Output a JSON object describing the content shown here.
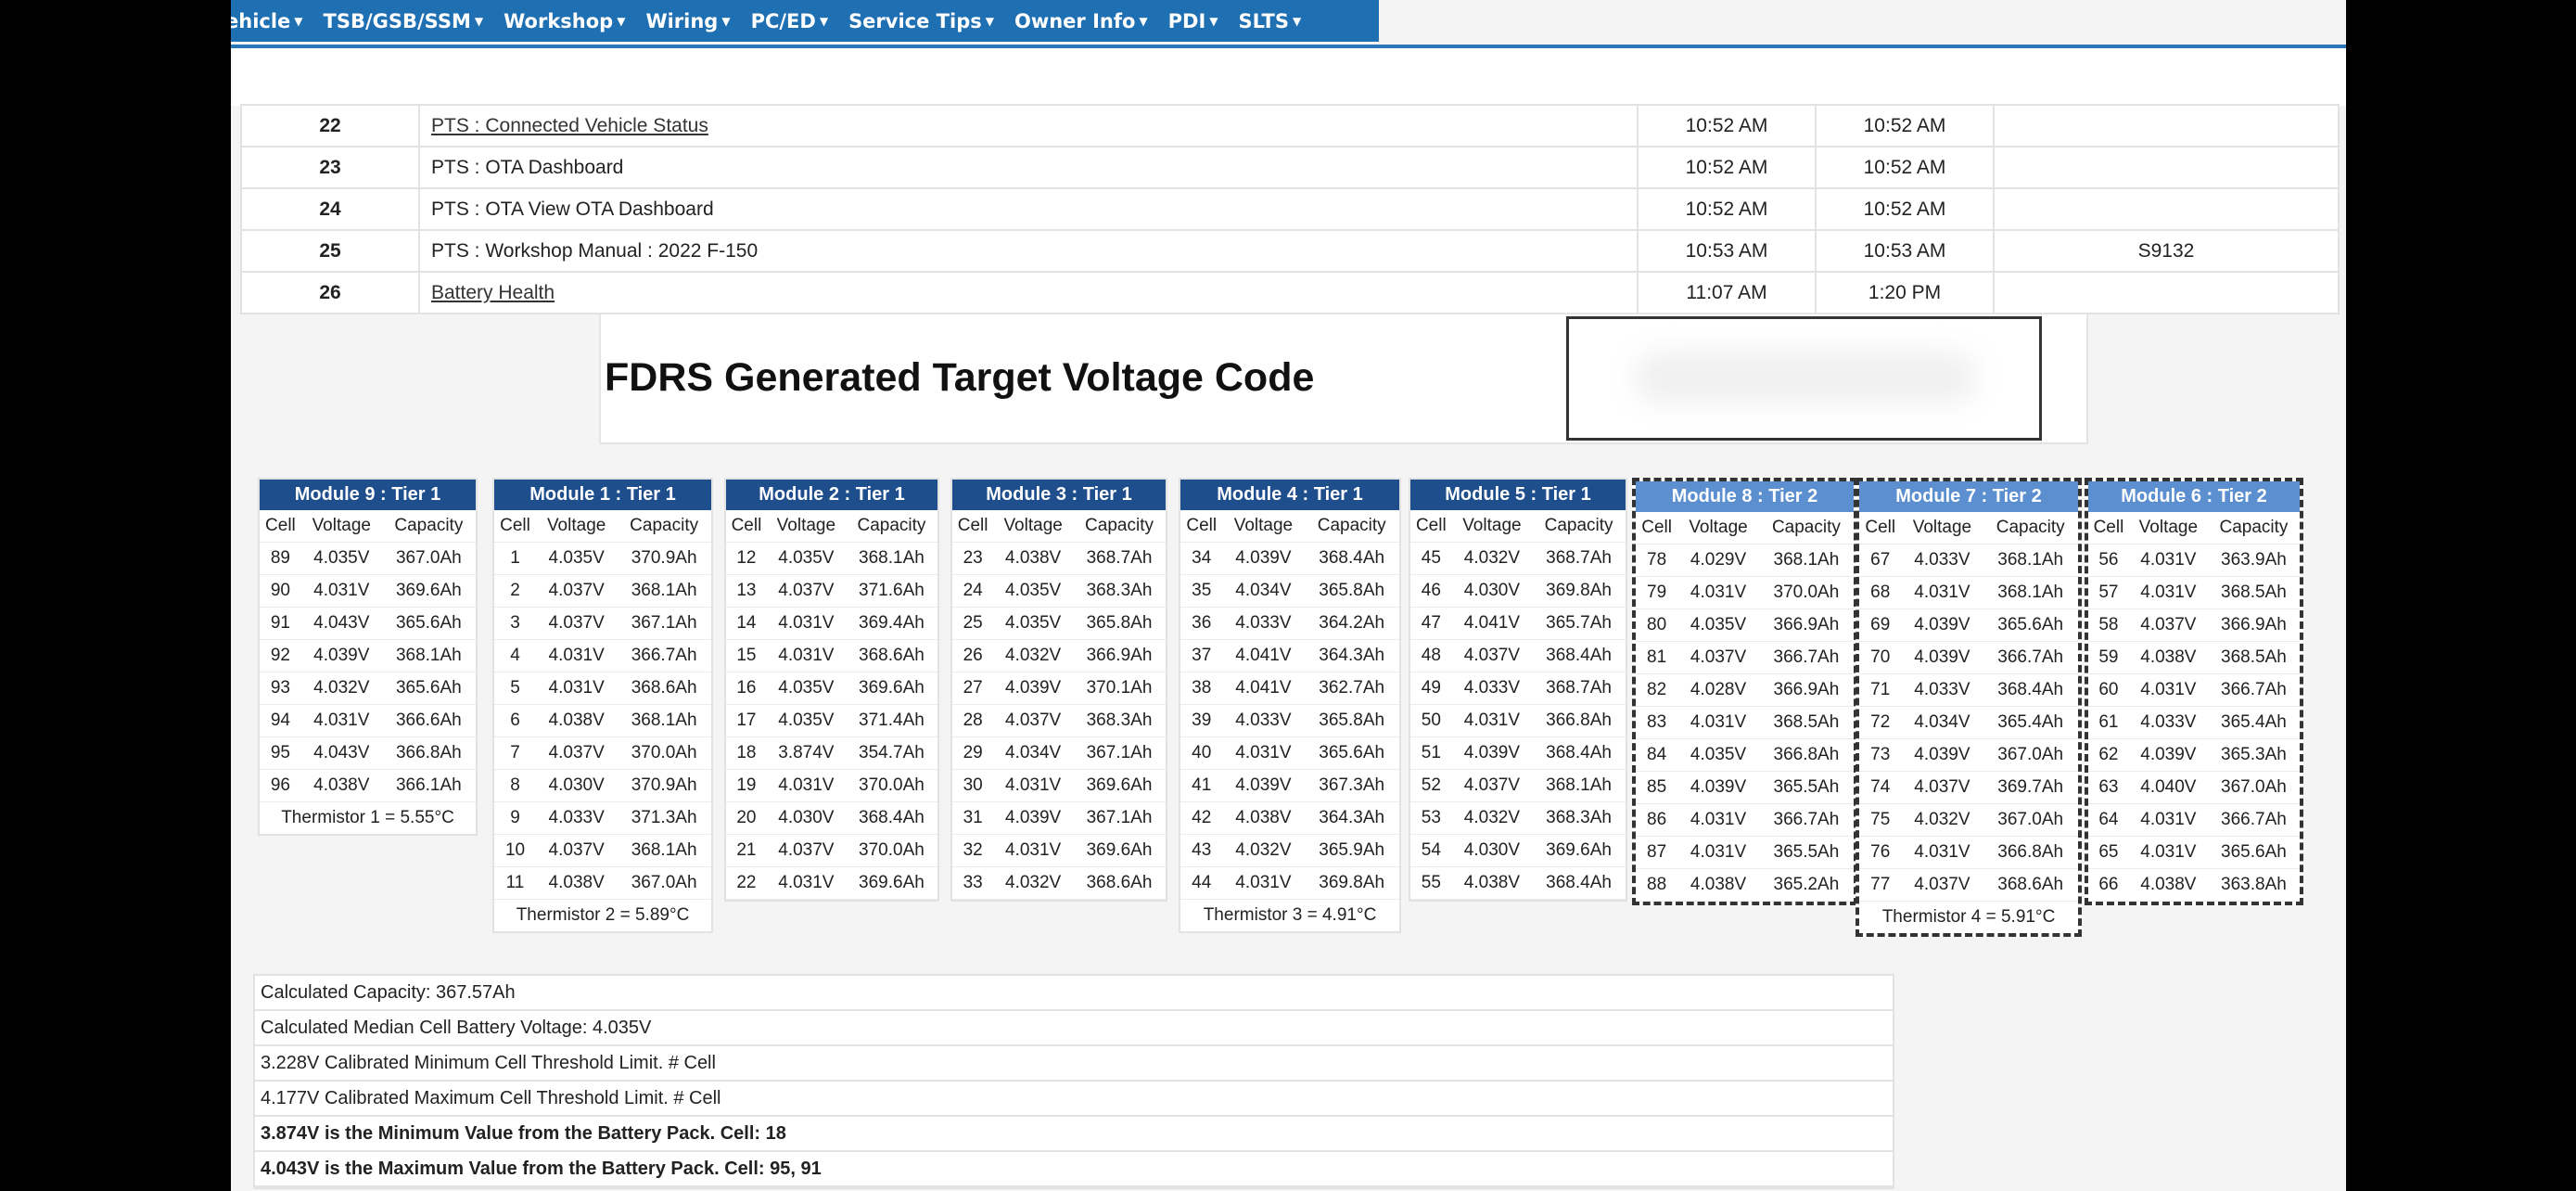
{
  "nav": [
    "ehicle",
    "TSB/GSB/SSM",
    "Workshop",
    "Wiring",
    "PC/ED",
    "Service Tips",
    "Owner Info",
    "PDI",
    "SLTS"
  ],
  "history": [
    {
      "num": "22",
      "desc": "PTS : Connected Vehicle Status",
      "t1": "10:52 AM",
      "t2": "10:52 AM",
      "code": "",
      "link": true
    },
    {
      "num": "23",
      "desc": "PTS : OTA Dashboard",
      "t1": "10:52 AM",
      "t2": "10:52 AM",
      "code": "",
      "link": false
    },
    {
      "num": "24",
      "desc": "PTS : OTA View OTA Dashboard",
      "t1": "10:52 AM",
      "t2": "10:52 AM",
      "code": "",
      "link": false
    },
    {
      "num": "25",
      "desc": "PTS : Workshop Manual : 2022 F-150",
      "t1": "10:53 AM",
      "t2": "10:53 AM",
      "code": "S9132",
      "link": false
    },
    {
      "num": "26",
      "desc": "Battery Health",
      "t1": "11:07 AM",
      "t2": "1:20 PM",
      "code": "",
      "link": true
    }
  ],
  "fdrs": {
    "title": "FDRS Generated Target Voltage Code"
  },
  "cell_headers": [
    "Cell",
    "Voltage",
    "Capacity"
  ],
  "modules": [
    {
      "title": "Module 9 : Tier 1",
      "dashed": false,
      "thermistor": "Thermistor 1 = 5.55°C",
      "cells": [
        [
          "89",
          "4.035V",
          "367.0Ah"
        ],
        [
          "90",
          "4.031V",
          "369.6Ah"
        ],
        [
          "91",
          "4.043V",
          "365.6Ah"
        ],
        [
          "92",
          "4.039V",
          "368.1Ah"
        ],
        [
          "93",
          "4.032V",
          "365.6Ah"
        ],
        [
          "94",
          "4.031V",
          "366.6Ah"
        ],
        [
          "95",
          "4.043V",
          "366.8Ah"
        ],
        [
          "96",
          "4.038V",
          "366.1Ah"
        ]
      ]
    },
    {
      "title": "Module 1 : Tier 1",
      "dashed": false,
      "thermistor": "Thermistor 2 = 5.89°C",
      "cells": [
        [
          "1",
          "4.035V",
          "370.9Ah"
        ],
        [
          "2",
          "4.037V",
          "368.1Ah"
        ],
        [
          "3",
          "4.037V",
          "367.1Ah"
        ],
        [
          "4",
          "4.031V",
          "366.7Ah"
        ],
        [
          "5",
          "4.031V",
          "368.6Ah"
        ],
        [
          "6",
          "4.038V",
          "368.1Ah"
        ],
        [
          "7",
          "4.037V",
          "370.0Ah"
        ],
        [
          "8",
          "4.030V",
          "370.9Ah"
        ],
        [
          "9",
          "4.033V",
          "371.3Ah"
        ],
        [
          "10",
          "4.037V",
          "368.1Ah"
        ],
        [
          "11",
          "4.038V",
          "367.0Ah"
        ]
      ]
    },
    {
      "title": "Module 2 : Tier 1",
      "dashed": false,
      "thermistor": "",
      "cells": [
        [
          "12",
          "4.035V",
          "368.1Ah"
        ],
        [
          "13",
          "4.037V",
          "371.6Ah"
        ],
        [
          "14",
          "4.031V",
          "369.4Ah"
        ],
        [
          "15",
          "4.031V",
          "368.6Ah"
        ],
        [
          "16",
          "4.035V",
          "369.6Ah"
        ],
        [
          "17",
          "4.035V",
          "371.4Ah"
        ],
        [
          "18",
          "3.874V",
          "354.7Ah"
        ],
        [
          "19",
          "4.031V",
          "370.0Ah"
        ],
        [
          "20",
          "4.030V",
          "368.4Ah"
        ],
        [
          "21",
          "4.037V",
          "370.0Ah"
        ],
        [
          "22",
          "4.031V",
          "369.6Ah"
        ]
      ]
    },
    {
      "title": "Module 3 : Tier 1",
      "dashed": false,
      "thermistor": "",
      "cells": [
        [
          "23",
          "4.038V",
          "368.7Ah"
        ],
        [
          "24",
          "4.035V",
          "368.3Ah"
        ],
        [
          "25",
          "4.035V",
          "365.8Ah"
        ],
        [
          "26",
          "4.032V",
          "366.9Ah"
        ],
        [
          "27",
          "4.039V",
          "370.1Ah"
        ],
        [
          "28",
          "4.037V",
          "368.3Ah"
        ],
        [
          "29",
          "4.034V",
          "367.1Ah"
        ],
        [
          "30",
          "4.031V",
          "369.6Ah"
        ],
        [
          "31",
          "4.039V",
          "367.1Ah"
        ],
        [
          "32",
          "4.031V",
          "369.6Ah"
        ],
        [
          "33",
          "4.032V",
          "368.6Ah"
        ]
      ]
    },
    {
      "title": "Module 4 : Tier 1",
      "dashed": false,
      "thermistor": "Thermistor 3 = 4.91°C",
      "cells": [
        [
          "34",
          "4.039V",
          "368.4Ah"
        ],
        [
          "35",
          "4.034V",
          "365.8Ah"
        ],
        [
          "36",
          "4.033V",
          "364.2Ah"
        ],
        [
          "37",
          "4.041V",
          "364.3Ah"
        ],
        [
          "38",
          "4.041V",
          "362.7Ah"
        ],
        [
          "39",
          "4.033V",
          "365.8Ah"
        ],
        [
          "40",
          "4.031V",
          "365.6Ah"
        ],
        [
          "41",
          "4.039V",
          "367.3Ah"
        ],
        [
          "42",
          "4.038V",
          "364.3Ah"
        ],
        [
          "43",
          "4.032V",
          "365.9Ah"
        ],
        [
          "44",
          "4.031V",
          "369.8Ah"
        ]
      ]
    },
    {
      "title": "Module 5 : Tier 1",
      "dashed": false,
      "thermistor": "",
      "cells": [
        [
          "45",
          "4.032V",
          "368.7Ah"
        ],
        [
          "46",
          "4.030V",
          "369.8Ah"
        ],
        [
          "47",
          "4.041V",
          "365.7Ah"
        ],
        [
          "48",
          "4.037V",
          "368.4Ah"
        ],
        [
          "49",
          "4.033V",
          "368.7Ah"
        ],
        [
          "50",
          "4.031V",
          "366.8Ah"
        ],
        [
          "51",
          "4.039V",
          "368.4Ah"
        ],
        [
          "52",
          "4.037V",
          "368.1Ah"
        ],
        [
          "53",
          "4.032V",
          "368.3Ah"
        ],
        [
          "54",
          "4.030V",
          "369.6Ah"
        ],
        [
          "55",
          "4.038V",
          "368.4Ah"
        ]
      ]
    },
    {
      "title": "Module 8 : Tier 2",
      "dashed": true,
      "thermistor": "",
      "cells": [
        [
          "78",
          "4.029V",
          "368.1Ah"
        ],
        [
          "79",
          "4.031V",
          "370.0Ah"
        ],
        [
          "80",
          "4.035V",
          "366.9Ah"
        ],
        [
          "81",
          "4.037V",
          "366.7Ah"
        ],
        [
          "82",
          "4.028V",
          "366.9Ah"
        ],
        [
          "83",
          "4.031V",
          "368.5Ah"
        ],
        [
          "84",
          "4.035V",
          "366.8Ah"
        ],
        [
          "85",
          "4.039V",
          "365.5Ah"
        ],
        [
          "86",
          "4.031V",
          "366.7Ah"
        ],
        [
          "87",
          "4.031V",
          "365.5Ah"
        ],
        [
          "88",
          "4.038V",
          "365.2Ah"
        ]
      ]
    },
    {
      "title": "Module 7 : Tier 2",
      "dashed": true,
      "thermistor": "Thermistor 4 = 5.91°C",
      "cells": [
        [
          "67",
          "4.033V",
          "368.1Ah"
        ],
        [
          "68",
          "4.031V",
          "368.1Ah"
        ],
        [
          "69",
          "4.039V",
          "365.6Ah"
        ],
        [
          "70",
          "4.039V",
          "366.7Ah"
        ],
        [
          "71",
          "4.033V",
          "368.4Ah"
        ],
        [
          "72",
          "4.034V",
          "365.4Ah"
        ],
        [
          "73",
          "4.039V",
          "367.0Ah"
        ],
        [
          "74",
          "4.037V",
          "369.7Ah"
        ],
        [
          "75",
          "4.032V",
          "367.0Ah"
        ],
        [
          "76",
          "4.031V",
          "366.8Ah"
        ],
        [
          "77",
          "4.037V",
          "368.6Ah"
        ]
      ]
    },
    {
      "title": "Module 6 : Tier 2",
      "dashed": true,
      "thermistor": "",
      "cells": [
        [
          "56",
          "4.031V",
          "363.9Ah"
        ],
        [
          "57",
          "4.031V",
          "368.5Ah"
        ],
        [
          "58",
          "4.037V",
          "366.9Ah"
        ],
        [
          "59",
          "4.038V",
          "368.5Ah"
        ],
        [
          "60",
          "4.031V",
          "366.7Ah"
        ],
        [
          "61",
          "4.033V",
          "365.4Ah"
        ],
        [
          "62",
          "4.039V",
          "365.3Ah"
        ],
        [
          "63",
          "4.040V",
          "367.0Ah"
        ],
        [
          "64",
          "4.031V",
          "366.7Ah"
        ],
        [
          "65",
          "4.031V",
          "365.6Ah"
        ],
        [
          "66",
          "4.038V",
          "363.8Ah"
        ]
      ]
    }
  ],
  "summary": [
    {
      "text": "Calculated Capacity: 367.57Ah",
      "bold": false
    },
    {
      "text": "Calculated Median Cell Battery Voltage: 4.035V",
      "bold": false
    },
    {
      "text": "3.228V Calibrated Minimum Cell Threshold Limit. # Cell",
      "bold": false
    },
    {
      "text": "4.177V Calibrated Maximum Cell Threshold Limit. # Cell",
      "bold": false
    },
    {
      "text": "3.874V is the Minimum Value from the Battery Pack. Cell: 18",
      "bold": true
    },
    {
      "text": "4.043V is the Maximum Value from the Battery Pack. Cell: 95, 91",
      "bold": true
    }
  ]
}
